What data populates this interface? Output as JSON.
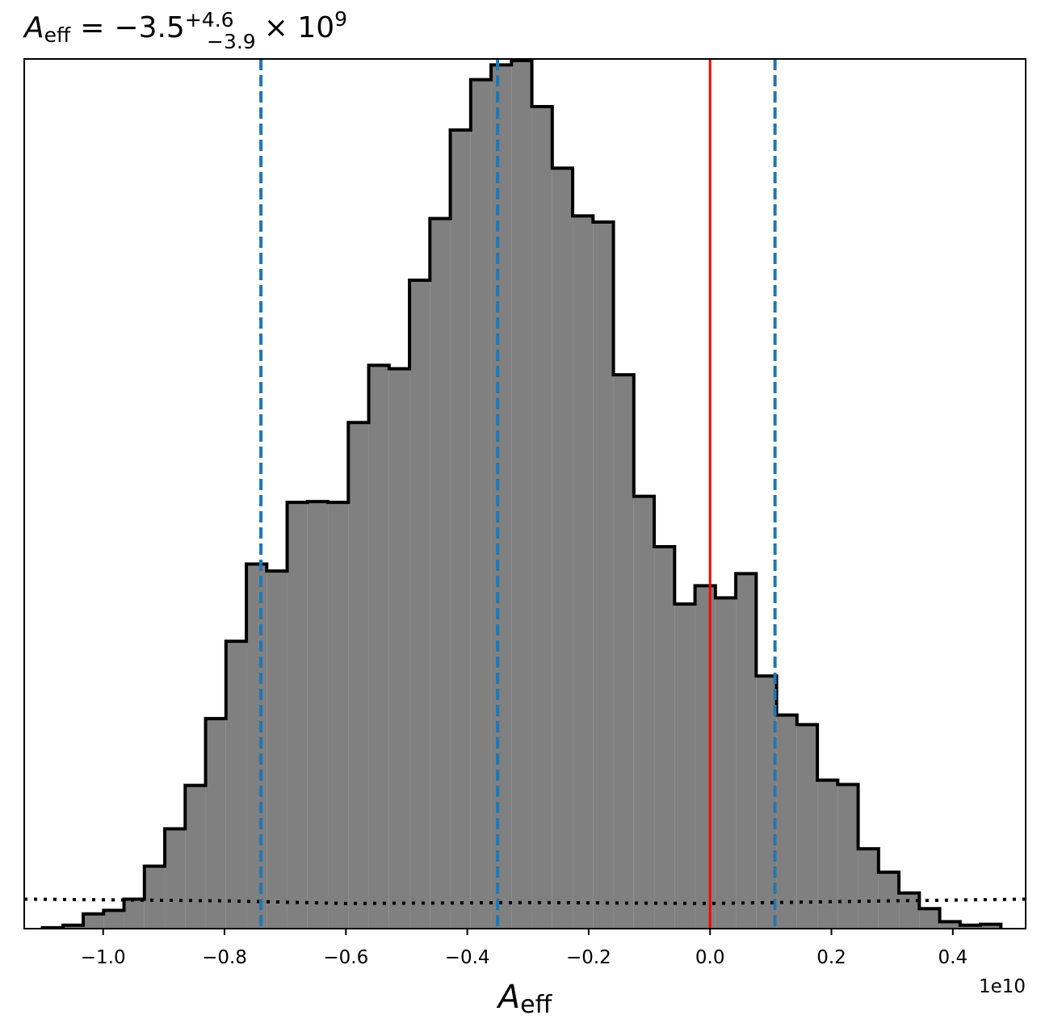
{
  "chart_data": {
    "type": "bar",
    "title": {
      "symbol": "A",
      "symbol_subscript": "eff",
      "equals": "=",
      "value": "−3.5",
      "plus_error": "+4.6",
      "minus_error": "−3.9",
      "multiplier": "× 10",
      "exponent": "9"
    },
    "xlabel": {
      "symbol": "A",
      "subscript": "eff"
    },
    "x_offset_label": "1e10",
    "xlim": [
      -11300000000.0,
      5200000000.0
    ],
    "ylim": [
      0,
      1.0
    ],
    "xticks": [
      -10000000000.0,
      -8000000000.0,
      -6000000000.0,
      -4000000000.0,
      -2000000000.0,
      0.0,
      2000000000.0,
      4000000000.0
    ],
    "xtick_labels": [
      "−1.0",
      "−0.8",
      "−0.6",
      "−0.4",
      "−0.2",
      "0.0",
      "0.2",
      "0.4"
    ],
    "grid": false,
    "histogram": {
      "fill_color": "#808080",
      "edge_color": "#000000",
      "bin_edges": [
        -11000000000.0,
        -10660000000.0,
        -10328000000.0,
        -9992000000.0,
        -9656000000.0,
        -9320000000.0,
        -8984000000.0,
        -8648000000.0,
        -8312000000.0,
        -7976000000.0,
        -7640000000.0,
        -7304000000.0,
        -6968000000.0,
        -6632000000.0,
        -6296000000.0,
        -5960000000.0,
        -5624000000.0,
        -5288000000.0,
        -4952000000.0,
        -4616000000.0,
        -4280000000.0,
        -3944000000.0,
        -3608000000.0,
        -3272000000.0,
        -2936000000.0,
        -2600000000.0,
        -2264000000.0,
        -1928000000.0,
        -1592000000.0,
        -1256000000.0,
        -920000000.0,
        -584000000.0,
        -248000000.0,
        88000000.0,
        424000000.0,
        760000000.0,
        1096000000.0,
        1432000000.0,
        1768000000.0,
        2104000000.0,
        2440000000.0,
        2776000000.0,
        3112000000.0,
        3448000000.0,
        3784000000.0,
        4120000000.0,
        4456000000.0,
        4792000000.0
      ],
      "heights": [
        0.001,
        0.004,
        0.017,
        0.021,
        0.034,
        0.072,
        0.115,
        0.165,
        0.242,
        0.331,
        0.42,
        0.412,
        0.491,
        0.492,
        0.491,
        0.583,
        0.649,
        0.645,
        0.747,
        0.818,
        0.92,
        0.978,
        0.995,
        1.0,
        0.947,
        0.876,
        0.821,
        0.814,
        0.638,
        0.498,
        0.44,
        0.374,
        0.395,
        0.381,
        0.409,
        0.291,
        0.246,
        0.235,
        0.171,
        0.166,
        0.092,
        0.065,
        0.041,
        0.023,
        0.008,
        0.004,
        0.005
      ]
    },
    "prior_line": {
      "style": "dotted",
      "color": "#000000",
      "x": [
        -11300000000.0,
        -8000000000.0,
        -6000000000.0,
        -3000000000.0,
        0.0,
        3000000000.0,
        5200000000.0
      ],
      "y": [
        0.034,
        0.032,
        0.029,
        0.03,
        0.029,
        0.032,
        0.034
      ]
    },
    "quantile_lines": {
      "style": "dashed",
      "color": "#1f77b4",
      "x": [
        -7400000000.0,
        -3500000000.0,
        1070000000.0
      ]
    },
    "reference_line": {
      "color": "#ff0000",
      "x": 0.0
    }
  }
}
